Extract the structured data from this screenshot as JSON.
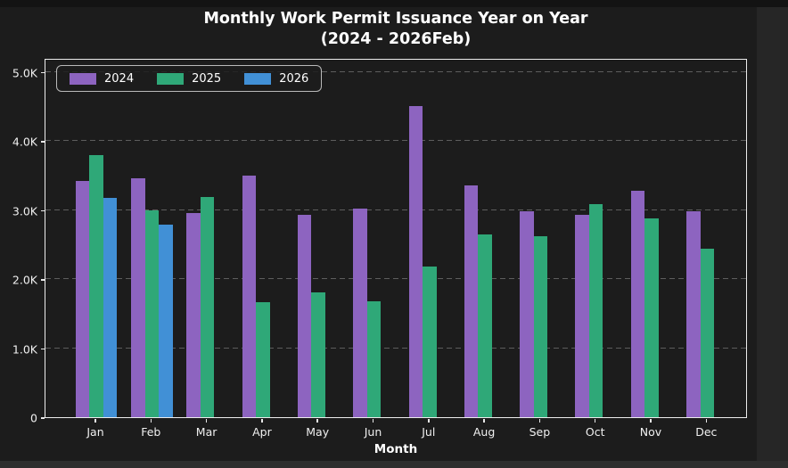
{
  "figure": {
    "title_line1": "Monthly Work Permit Issuance Year on Year",
    "title_line2": "(2024 - 2026Feb)",
    "xlabel": "Month"
  },
  "colors": {
    "series_2024": "#8d64c0",
    "series_2025": "#2fa878",
    "series_2026": "#4190d6",
    "figure_bg": "#1c1c1c",
    "page_bg": "#262626",
    "grid": "#5d5d5d",
    "spine": "#ededed",
    "text": "#ffffff"
  },
  "chart_data": {
    "type": "bar",
    "title": "Monthly Work Permit Issuance Year on Year (2024 - 2026Feb)",
    "xlabel": "Month",
    "ylabel": "",
    "categories": [
      "Jan",
      "Feb",
      "Mar",
      "Apr",
      "May",
      "Jun",
      "Jul",
      "Aug",
      "Sep",
      "Oct",
      "Nov",
      "Dec"
    ],
    "series": [
      {
        "name": "2024",
        "color": "#8d64c0",
        "values": [
          3420,
          3460,
          2950,
          3500,
          2930,
          3020,
          4510,
          3360,
          2980,
          2930,
          3280,
          2980
        ]
      },
      {
        "name": "2025",
        "color": "#2fa878",
        "values": [
          3800,
          2990,
          3190,
          1660,
          1810,
          1680,
          2180,
          2650,
          2620,
          3080,
          2880,
          2440
        ]
      },
      {
        "name": "2026",
        "color": "#4190d6",
        "values": [
          3180,
          2790,
          null,
          null,
          null,
          null,
          null,
          null,
          null,
          null,
          null,
          null
        ]
      }
    ],
    "ylim": [
      0,
      5200
    ],
    "yticks": [
      0,
      1000,
      2000,
      3000,
      4000,
      5000
    ],
    "ytick_labels": [
      "0",
      "1.0K",
      "2.0K",
      "3.0K",
      "4.0K",
      "5.0K"
    ],
    "grid": true,
    "grid_style": "dashed",
    "legend_position": "upper left",
    "legend_labels": [
      "2024",
      "2025",
      "2026"
    ]
  }
}
